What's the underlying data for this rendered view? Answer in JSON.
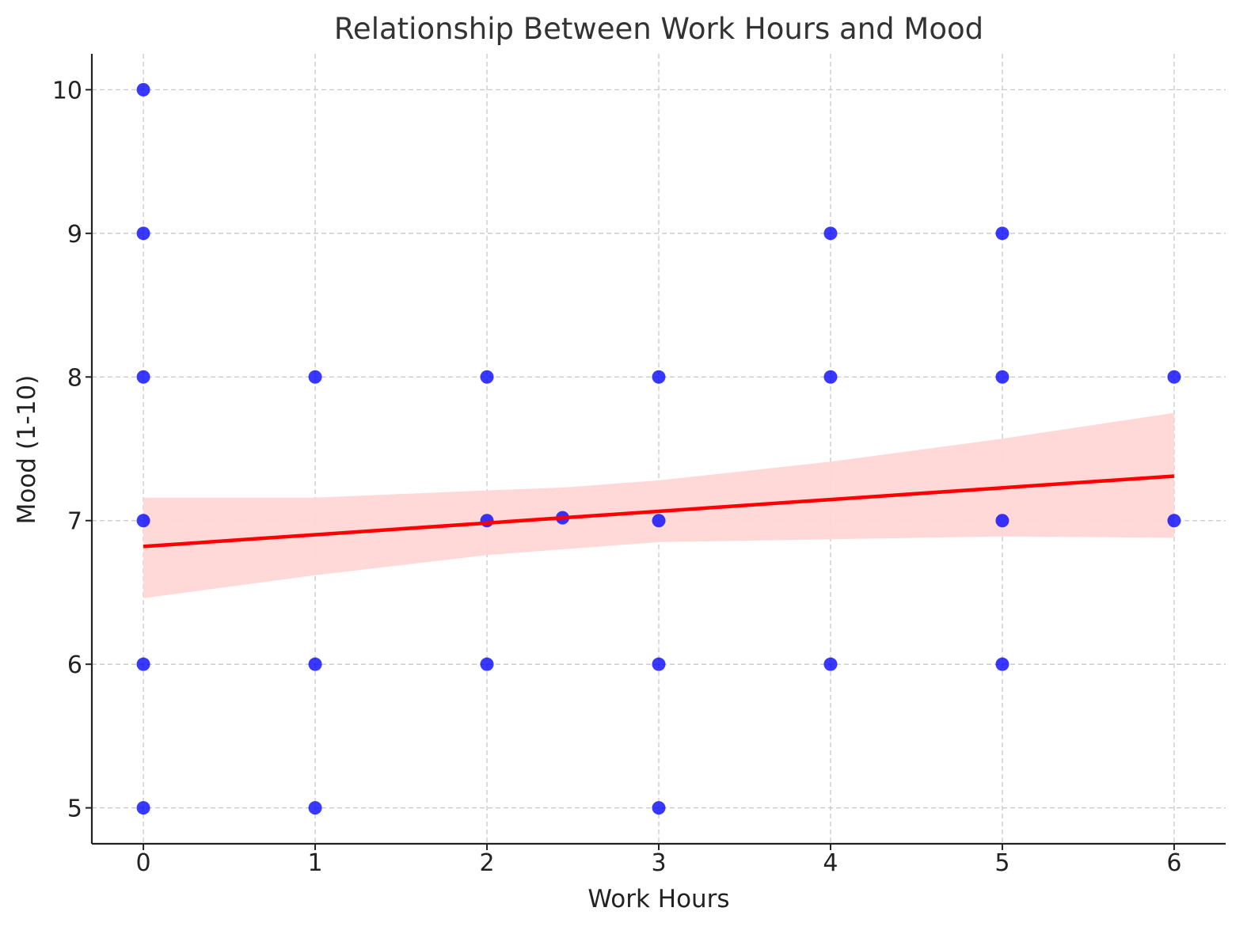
{
  "chart_data": {
    "type": "scatter",
    "title": "Relationship Between Work Hours and Mood",
    "xlabel": "Work Hours",
    "ylabel": "Mood (1-10)",
    "xlim": [
      -0.3,
      6.3
    ],
    "ylim": [
      4.75,
      10.25
    ],
    "xticks": [
      0,
      1,
      2,
      3,
      4,
      5,
      6
    ],
    "yticks": [
      5,
      6,
      7,
      8,
      9,
      10
    ],
    "grid": true,
    "grid_style": "dashed",
    "point_color": "#0000ff",
    "points": [
      {
        "x": 0,
        "y": 10
      },
      {
        "x": 0,
        "y": 9
      },
      {
        "x": 0,
        "y": 8
      },
      {
        "x": 0,
        "y": 7
      },
      {
        "x": 0,
        "y": 6
      },
      {
        "x": 0,
        "y": 5
      },
      {
        "x": 1,
        "y": 8
      },
      {
        "x": 1,
        "y": 6
      },
      {
        "x": 1,
        "y": 5
      },
      {
        "x": 2,
        "y": 8
      },
      {
        "x": 2,
        "y": 7
      },
      {
        "x": 2,
        "y": 6
      },
      {
        "x": 2.44,
        "y": 7.02
      },
      {
        "x": 3,
        "y": 8
      },
      {
        "x": 3,
        "y": 7
      },
      {
        "x": 3,
        "y": 6
      },
      {
        "x": 3,
        "y": 5
      },
      {
        "x": 4,
        "y": 9
      },
      {
        "x": 4,
        "y": 8
      },
      {
        "x": 4,
        "y": 6
      },
      {
        "x": 5,
        "y": 9
      },
      {
        "x": 5,
        "y": 8
      },
      {
        "x": 5,
        "y": 7
      },
      {
        "x": 5,
        "y": 6
      },
      {
        "x": 6,
        "y": 8
      },
      {
        "x": 6,
        "y": 7
      }
    ],
    "regression": {
      "color": "#ff0000",
      "start": {
        "x": 0,
        "y": 6.82
      },
      "end": {
        "x": 6,
        "y": 7.31
      }
    },
    "confidence_band": {
      "color": "#ffd6d6",
      "x": [
        0,
        1,
        2,
        2.44,
        3,
        4,
        5,
        6
      ],
      "upper": [
        7.16,
        7.16,
        7.21,
        7.23,
        7.28,
        7.41,
        7.57,
        7.75
      ],
      "lower": [
        6.46,
        6.62,
        6.76,
        6.8,
        6.85,
        6.87,
        6.89,
        6.88
      ]
    }
  }
}
